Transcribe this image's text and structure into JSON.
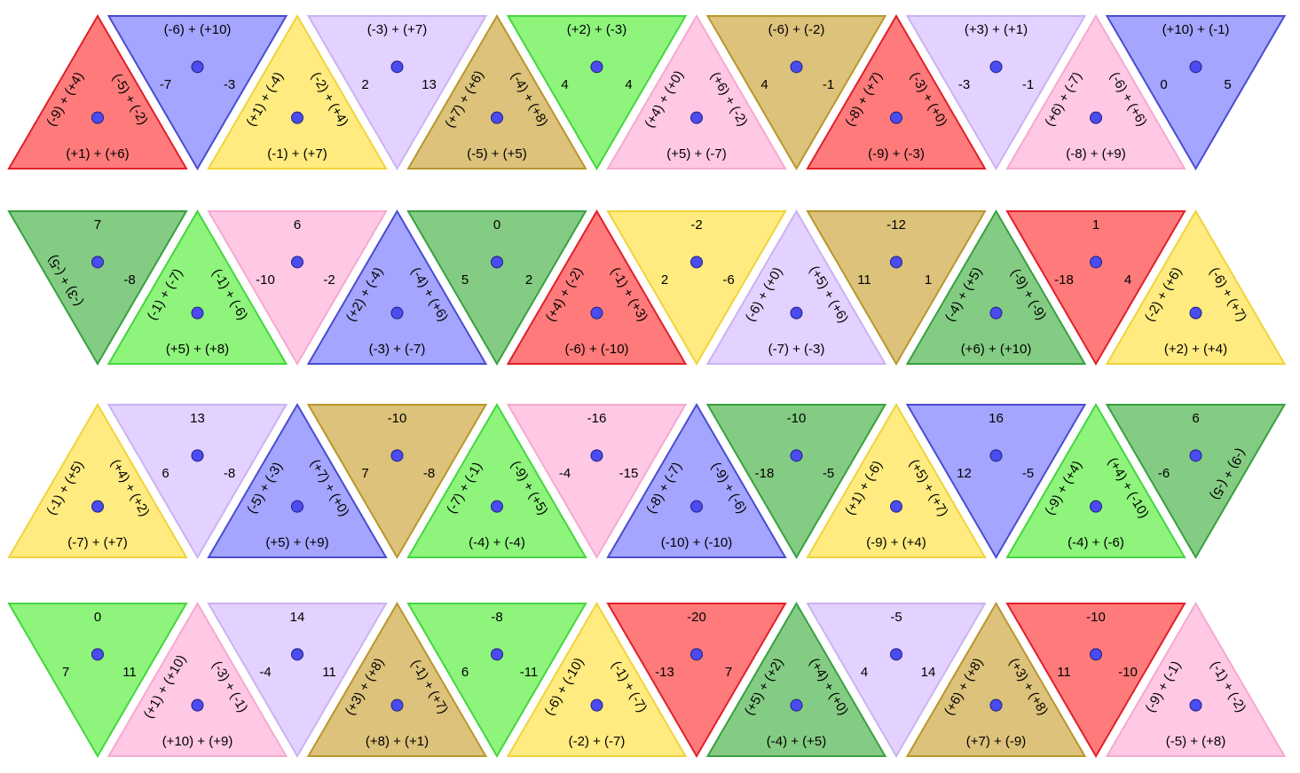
{
  "palette": {
    "red": {
      "fill": "#ff7b7b",
      "stroke": "#e0202a"
    },
    "blue": {
      "fill": "#a3a5ff",
      "stroke": "#4a4ccf"
    },
    "yellow": {
      "fill": "#ffeb80",
      "stroke": "#f0d33a"
    },
    "lavender": {
      "fill": "#e3d1ff",
      "stroke": "#cbb2f2"
    },
    "tan": {
      "fill": "#dcc27a",
      "stroke": "#b9962e"
    },
    "lime": {
      "fill": "#8ef47c",
      "stroke": "#45d640"
    },
    "pink": {
      "fill": "#ffc8e5",
      "stroke": "#f5a9cf"
    },
    "green": {
      "fill": "#84cc84",
      "stroke": "#38a040"
    }
  },
  "center_dot_color": "#4a4cf0",
  "rows": [
    [
      {
        "color": "red",
        "labels": [
          "(+1) + (+6)",
          "(-5) + (-2)",
          "(-9) + (+4)"
        ]
      },
      {
        "color": "blue",
        "labels": [
          "(-6) + (+10)",
          "-3",
          "-7"
        ]
      },
      {
        "color": "yellow",
        "labels": [
          "(-1) + (+7)",
          "(-2) + (+4)",
          "(+1) + (-4)"
        ]
      },
      {
        "color": "lavender",
        "labels": [
          "(-3) + (+7)",
          "13",
          "2"
        ]
      },
      {
        "color": "tan",
        "labels": [
          "(-5) + (+5)",
          "(-4) + (+8)",
          "(+7) + (+6)"
        ]
      },
      {
        "color": "lime",
        "labels": [
          "(+2) + (-3)",
          "4",
          "4"
        ]
      },
      {
        "color": "pink",
        "labels": [
          "(+5) + (-7)",
          "(+6) + (-2)",
          "(+4) + (+0)"
        ]
      },
      {
        "color": "tan",
        "labels": [
          "(-6) + (-2)",
          "-1",
          "4"
        ]
      },
      {
        "color": "red",
        "labels": [
          "(-9) + (-3)",
          "(-3) + (+0)",
          "(-8) + (+7)"
        ]
      },
      {
        "color": "lavender",
        "labels": [
          "(+3) + (+1)",
          "-1",
          "-3"
        ]
      },
      {
        "color": "pink",
        "labels": [
          "(-8) + (+9)",
          "(-6) + (+6)",
          "(+6) + (-7)"
        ]
      },
      {
        "color": "blue",
        "labels": [
          "(+10) + (-1)",
          "5",
          "0"
        ]
      }
    ],
    [
      {
        "color": "green",
        "labels": [
          "7",
          "-8",
          "(-3) + (-5)"
        ]
      },
      {
        "color": "lime",
        "labels": [
          "(+5) + (+8)",
          "(-1) + (-6)",
          "(-1) + (-7)"
        ]
      },
      {
        "color": "pink",
        "labels": [
          "6",
          "-2",
          "-10"
        ]
      },
      {
        "color": "blue",
        "labels": [
          "(-3) + (-7)",
          "(-4) + (+6)",
          "(+2) + (-4)"
        ]
      },
      {
        "color": "green",
        "labels": [
          "0",
          "2",
          "5"
        ]
      },
      {
        "color": "red",
        "labels": [
          "(-6) + (-10)",
          "(-1) + (+3)",
          "(+4) + (-2)"
        ]
      },
      {
        "color": "yellow",
        "labels": [
          "-2",
          "-6",
          "2"
        ]
      },
      {
        "color": "lavender",
        "labels": [
          "(-7) + (-3)",
          "(+5) + (+6)",
          "(-6) + (+0)"
        ]
      },
      {
        "color": "tan",
        "labels": [
          "-12",
          "1",
          "11"
        ]
      },
      {
        "color": "green",
        "labels": [
          "(+6) + (+10)",
          "(-9) + (-9)",
          "(-4) + (+5)"
        ]
      },
      {
        "color": "red",
        "labels": [
          "1",
          "4",
          "-18"
        ]
      },
      {
        "color": "yellow",
        "labels": [
          "(+2) + (+4)",
          "(-6) + (+7)",
          "(-2) + (+6)"
        ]
      }
    ],
    [
      {
        "color": "yellow",
        "labels": [
          "(-7) + (+7)",
          "(+4) + (+2)",
          "(-1) + (+5)"
        ]
      },
      {
        "color": "lavender",
        "labels": [
          "13",
          "-8",
          "6"
        ]
      },
      {
        "color": "blue",
        "labels": [
          "(+5) + (+9)",
          "(+7) + (+0)",
          "(-5) + (-3)"
        ]
      },
      {
        "color": "tan",
        "labels": [
          "-10",
          "-8",
          "7"
        ]
      },
      {
        "color": "lime",
        "labels": [
          "(-4) + (-4)",
          "(-9) + (+5)",
          "(-7) + (-1)"
        ]
      },
      {
        "color": "pink",
        "labels": [
          "-16",
          "-15",
          "-4"
        ]
      },
      {
        "color": "blue",
        "labels": [
          "(-10) + (-10)",
          "(-9) + (-6)",
          "(-8) + (-7)"
        ]
      },
      {
        "color": "green",
        "labels": [
          "-10",
          "-5",
          "-18"
        ]
      },
      {
        "color": "yellow",
        "labels": [
          "(-9) + (+4)",
          "(+5) + (+7)",
          "(+1) + (-6)"
        ]
      },
      {
        "color": "blue",
        "labels": [
          "16",
          "-5",
          "12"
        ]
      },
      {
        "color": "lime",
        "labels": [
          "(-4) + (-6)",
          "(+4) + (-10)",
          "(-9) + (+4)"
        ]
      },
      {
        "color": "green",
        "labels": [
          "6",
          "(-9) + (-5)",
          "-6"
        ]
      }
    ],
    [
      {
        "color": "lime",
        "labels": [
          "0",
          "11",
          "7"
        ]
      },
      {
        "color": "pink",
        "labels": [
          "(+10) + (+9)",
          "(-3) + (-1)",
          "(+1) + (+10)"
        ]
      },
      {
        "color": "lavender",
        "labels": [
          "14",
          "11",
          "-4"
        ]
      },
      {
        "color": "tan",
        "labels": [
          "(+8) + (+1)",
          "(-1) + (+7)",
          "(+3) + (+8)"
        ]
      },
      {
        "color": "lime",
        "labels": [
          "-8",
          "-11",
          "6"
        ]
      },
      {
        "color": "yellow",
        "labels": [
          "(-2) + (-7)",
          "(-1) + (-7)",
          "(-6) + (-10)"
        ]
      },
      {
        "color": "red",
        "labels": [
          "-20",
          "7",
          "-13"
        ]
      },
      {
        "color": "green",
        "labels": [
          "(-4) + (+5)",
          "(+4) + (+0)",
          "(+5) + (+2)"
        ]
      },
      {
        "color": "lavender",
        "labels": [
          "-5",
          "14",
          "4"
        ]
      },
      {
        "color": "tan",
        "labels": [
          "(+7) + (-9)",
          "(+3) + (+8)",
          "(+6) + (+8)"
        ]
      },
      {
        "color": "red",
        "labels": [
          "-10",
          "-10",
          "11"
        ]
      },
      {
        "color": "pink",
        "labels": [
          "(-5) + (+8)",
          "(-1) + (-2)",
          "(-9) + (-1)"
        ]
      }
    ]
  ]
}
